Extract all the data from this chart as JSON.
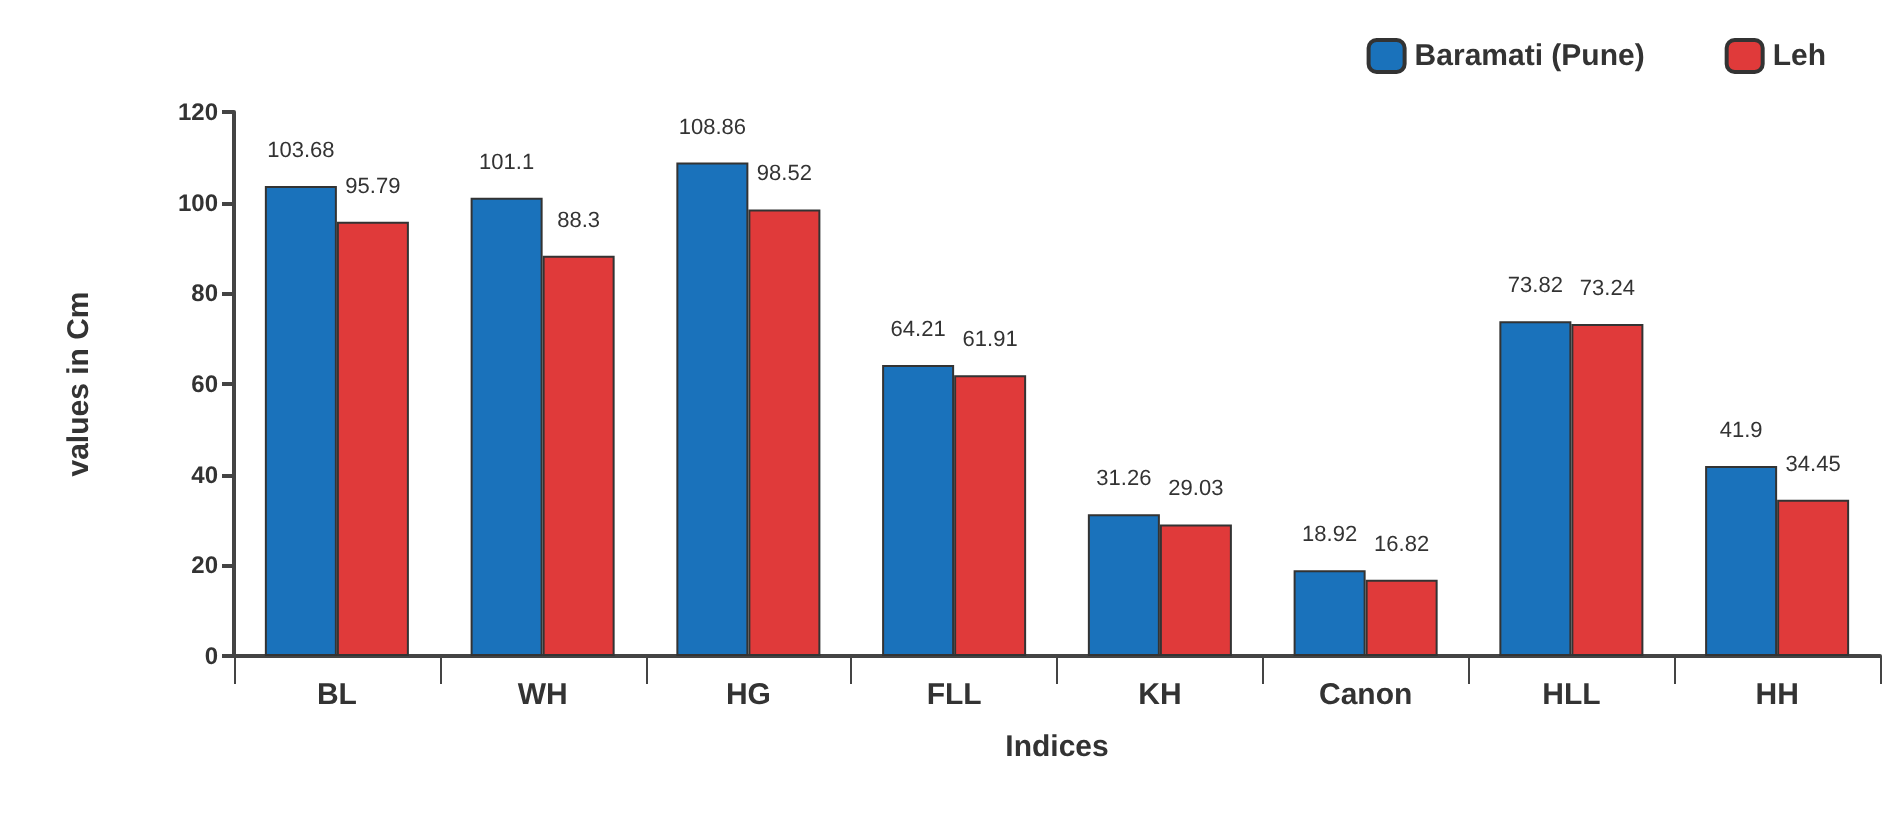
{
  "chart_data": {
    "type": "bar",
    "xlabel": "Indices",
    "ylabel": "values in Cm",
    "categories": [
      "BL",
      "WH",
      "HG",
      "FLL",
      "KH",
      "Canon",
      "HLL",
      "HH"
    ],
    "series": [
      {
        "name": "Baramati (Pune)",
        "color": "#1a72bb",
        "values": [
          103.68,
          101.1,
          108.86,
          64.21,
          31.26,
          18.92,
          73.82,
          41.9
        ]
      },
      {
        "name": "Leh",
        "color": "#e03a3a",
        "values": [
          95.79,
          88.3,
          98.52,
          61.91,
          29.03,
          16.82,
          73.24,
          34.45
        ]
      }
    ],
    "ylim": [
      0,
      120
    ],
    "yticks": [
      0,
      20,
      40,
      60,
      80,
      100,
      120
    ],
    "grid": false,
    "legend": "top right",
    "data_labels": true
  }
}
